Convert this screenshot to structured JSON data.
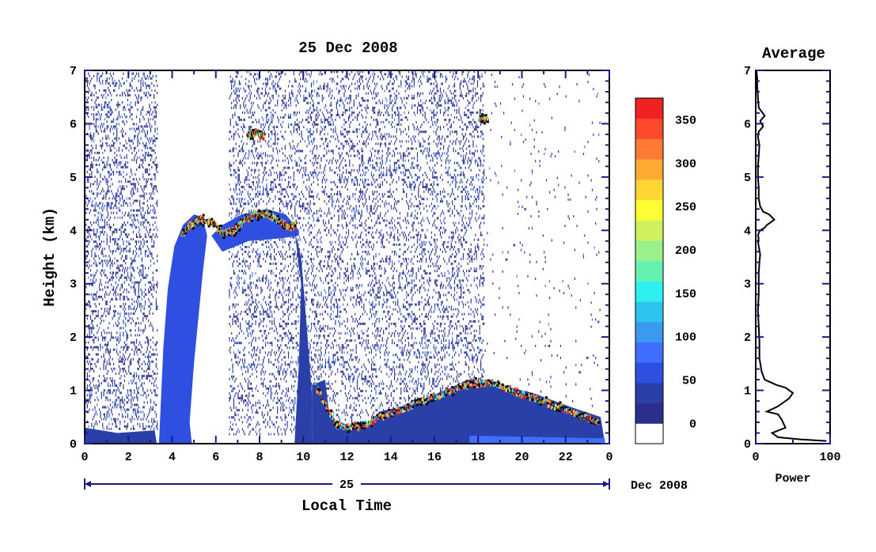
{
  "chart_data": [
    {
      "type": "heatmap",
      "title": "25 Dec 2008",
      "xlabel": "Local Time",
      "ylabel": "Height (km)",
      "date_bar_label": "25",
      "date_right_label": "Dec 2008",
      "xlim": [
        0,
        24
      ],
      "ylim": [
        0,
        7
      ],
      "x_tick_labels": [
        "0",
        "2",
        "4",
        "6",
        "8",
        "10",
        "12",
        "14",
        "16",
        "18",
        "20",
        "22",
        "0"
      ],
      "y_tick_labels": [
        "0",
        "1",
        "2",
        "3",
        "4",
        "5",
        "6",
        "7"
      ],
      "colorbar": {
        "tick_labels": [
          "0",
          "50",
          "100",
          "150",
          "200",
          "250",
          "300",
          "350"
        ],
        "range": [
          0,
          375
        ],
        "colors": [
          "#ffffff",
          "#2b2f8c",
          "#2b3fa8",
          "#2e4fe0",
          "#3f6fff",
          "#3a9af0",
          "#2fc4f0",
          "#2ef0ee",
          "#66f0b0",
          "#9af08a",
          "#d0f060",
          "#ffff33",
          "#ffd633",
          "#ffaa33",
          "#ff7a33",
          "#ff4a2e",
          "#ee2222"
        ]
      },
      "features": [
        {
          "x": [
            4.4,
            4.8,
            5.3,
            5.8,
            6.3,
            6.8,
            7.3,
            7.8,
            8.3,
            8.8,
            9.3,
            9.6
          ],
          "y": [
            3.9,
            4.1,
            4.2,
            4.15,
            3.95,
            4.0,
            4.2,
            4.3,
            4.3,
            4.2,
            4.05,
            4.1
          ],
          "name": "cloud-layer-4km"
        },
        {
          "x": [
            7.4,
            7.8,
            8.2
          ],
          "y": [
            5.75,
            5.82,
            5.75
          ],
          "name": "cloud-layer-5.8km"
        },
        {
          "x": [
            18.0,
            18.4
          ],
          "y": [
            6.1,
            6.1
          ],
          "name": "cloud-layer-6.1km"
        },
        {
          "x": [
            10.5,
            11.5,
            12.5,
            13.5,
            14.5,
            15.5,
            16.5,
            17.5,
            18.5,
            19.5,
            20.5,
            21.5,
            22.5,
            23.5
          ],
          "y": [
            1.1,
            0.35,
            0.3,
            0.5,
            0.65,
            0.8,
            0.95,
            1.1,
            1.15,
            1.0,
            0.85,
            0.7,
            0.55,
            0.4
          ],
          "name": "boundary-layer"
        }
      ]
    },
    {
      "type": "line",
      "title": "Average",
      "xlabel": "Power",
      "x_tick_labels": [
        "0",
        "100"
      ],
      "y_tick_labels": [
        "0",
        "1",
        "2",
        "3",
        "4",
        "5",
        "6",
        "7"
      ],
      "xlim": [
        0,
        100
      ],
      "ylim": [
        0,
        7
      ],
      "x": [
        95,
        60,
        30,
        22,
        40,
        35,
        30,
        15,
        30,
        45,
        50,
        40,
        28,
        12,
        8,
        5,
        5,
        4,
        3,
        4,
        4,
        4,
        5,
        6,
        4,
        3,
        4,
        3,
        4,
        6,
        12,
        15,
        20,
        25,
        18,
        10,
        6,
        4,
        4,
        3,
        3,
        4,
        5,
        3,
        4,
        10,
        6,
        12,
        4,
        3,
        2,
        2,
        1
      ],
      "y": [
        0.05,
        0.08,
        0.12,
        0.2,
        0.3,
        0.45,
        0.55,
        0.6,
        0.7,
        0.85,
        0.95,
        1.05,
        1.1,
        1.2,
        1.35,
        1.6,
        1.9,
        2.2,
        2.5,
        2.8,
        3.0,
        3.2,
        3.4,
        3.55,
        3.7,
        3.8,
        3.85,
        3.9,
        3.95,
        4.0,
        4.05,
        4.1,
        4.15,
        4.2,
        4.3,
        4.35,
        4.45,
        4.6,
        4.8,
        5.0,
        5.2,
        5.4,
        5.6,
        5.75,
        5.85,
        5.95,
        6.05,
        6.15,
        6.3,
        6.5,
        6.7,
        6.85,
        7.0
      ]
    }
  ]
}
